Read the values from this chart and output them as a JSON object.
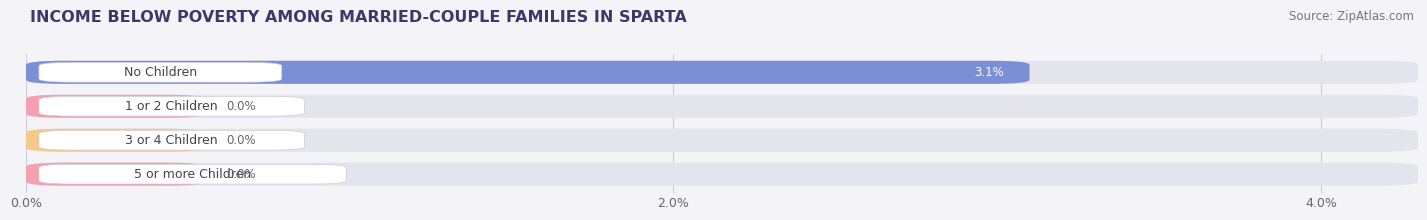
{
  "title": "INCOME BELOW POVERTY AMONG MARRIED-COUPLE FAMILIES IN SPARTA",
  "source": "Source: ZipAtlas.com",
  "categories": [
    "No Children",
    "1 or 2 Children",
    "3 or 4 Children",
    "5 or more Children"
  ],
  "values": [
    3.1,
    0.0,
    0.0,
    0.0
  ],
  "bar_colors": [
    "#7b8fd4",
    "#f4a0b0",
    "#f5c98a",
    "#f4a0b0"
  ],
  "xlim_max": 4.3,
  "xticks": [
    0.0,
    2.0,
    4.0
  ],
  "xtick_labels": [
    "0.0%",
    "2.0%",
    "4.0%"
  ],
  "background_color": "#f4f4f8",
  "bar_bg_color": "#e4e4ec",
  "white": "#ffffff",
  "title_color": "#3a3a6a",
  "source_color": "#777777",
  "label_color": "#444444",
  "value_color_inside": "#ffffff",
  "value_color_outside": "#666666",
  "title_fontsize": 11.5,
  "source_fontsize": 8.5,
  "label_fontsize": 9,
  "value_fontsize": 8.5,
  "bar_height": 0.68,
  "zero_bar_width": 0.55
}
